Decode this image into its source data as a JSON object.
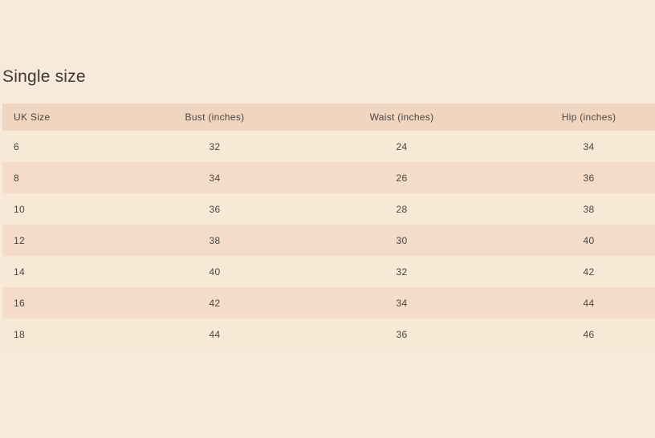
{
  "title": "Single size",
  "table": {
    "headers": [
      "UK Size",
      "Bust (inches)",
      "Waist (inches)",
      "Hip (inches)"
    ],
    "rows": [
      [
        "6",
        "32",
        "24",
        "34"
      ],
      [
        "8",
        "34",
        "26",
        "36"
      ],
      [
        "10",
        "36",
        "28",
        "38"
      ],
      [
        "12",
        "38",
        "30",
        "40"
      ],
      [
        "14",
        "40",
        "32",
        "42"
      ],
      [
        "16",
        "42",
        "34",
        "44"
      ],
      [
        "18",
        "44",
        "36",
        "46"
      ]
    ]
  },
  "colors": {
    "background": "#f8e9da",
    "header_row": "#f0d5c0",
    "row_odd": "#f8e8d6",
    "row_even": "#f4dcc8",
    "text": "#4b4643",
    "title_text": "#3a3937"
  }
}
